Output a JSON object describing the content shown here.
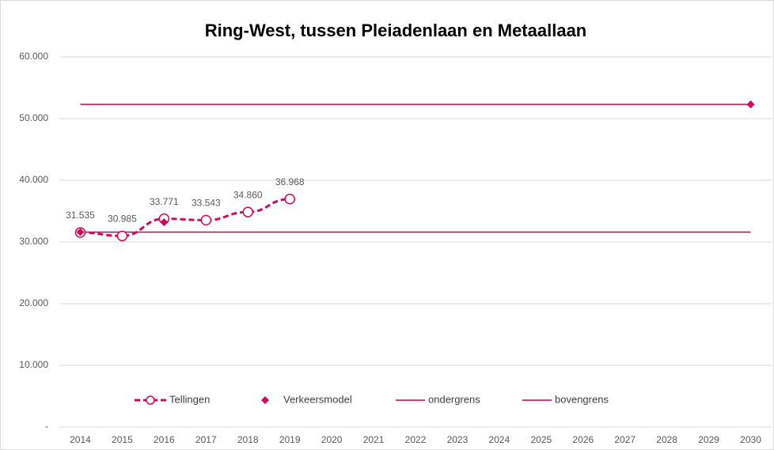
{
  "chart_data": {
    "type": "line",
    "title": "Ring-West, tussen Pleiadenlaan en Metaallaan",
    "categories": [
      "2014",
      "2015",
      "2016",
      "2017",
      "2018",
      "2019",
      "2020",
      "2021",
      "2022",
      "2023",
      "2024",
      "2025",
      "2026",
      "2027",
      "2028",
      "2029",
      "2030"
    ],
    "series": [
      {
        "name": "Tellingen",
        "color": "#d10a5d",
        "style": "dashed-circles",
        "values": [
          31535,
          30985,
          33771,
          33543,
          34860,
          36968,
          null,
          null,
          null,
          null,
          null,
          null,
          null,
          null,
          null,
          null,
          null
        ],
        "value_labels": [
          "31.535",
          "30.985",
          "33.771",
          "33.543",
          "34.860",
          "36.968",
          null,
          null,
          null,
          null,
          null,
          null,
          null,
          null,
          null,
          null,
          null
        ]
      },
      {
        "name": "Verkeersmodel",
        "color": "#d10a5d",
        "style": "diamonds",
        "values": [
          31600,
          null,
          33200,
          null,
          null,
          null,
          null,
          null,
          null,
          null,
          null,
          null,
          null,
          null,
          null,
          null,
          52300
        ]
      },
      {
        "name": "ondergrens",
        "color": "#c4004f",
        "style": "solid",
        "values": [
          31600,
          31600,
          31600,
          31600,
          31600,
          31600,
          31600,
          31600,
          31600,
          31600,
          31600,
          31600,
          31600,
          31600,
          31600,
          31600,
          31600
        ]
      },
      {
        "name": "bovengrens",
        "color": "#c4004f",
        "style": "solid",
        "values": [
          52300,
          52300,
          52300,
          52300,
          52300,
          52300,
          52300,
          52300,
          52300,
          52300,
          52300,
          52300,
          52300,
          52300,
          52300,
          52300,
          52300
        ]
      }
    ],
    "ylim": [
      0,
      60000
    ],
    "yticks": [
      {
        "value": 0,
        "label": "-"
      },
      {
        "value": 10000,
        "label": "10.000"
      },
      {
        "value": 20000,
        "label": "20.000"
      },
      {
        "value": 30000,
        "label": "30.000"
      },
      {
        "value": 40000,
        "label": "40.000"
      },
      {
        "value": 50000,
        "label": "50.000"
      },
      {
        "value": 60000,
        "label": "60.000"
      }
    ],
    "grid": true,
    "legend": "bottom"
  }
}
